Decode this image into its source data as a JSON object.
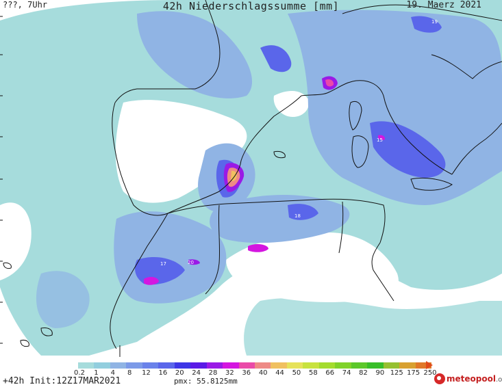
{
  "header": {
    "left": "???, 7Uhr",
    "title": "42h Niederschlagssumme [mm]",
    "date": "19. Maerz 2021"
  },
  "legend": {
    "ticks": [
      "0.2",
      "1",
      "4",
      "8",
      "12",
      "16",
      "20",
      "24",
      "28",
      "32",
      "36",
      "40",
      "44",
      "50",
      "58",
      "66",
      "74",
      "82",
      "90",
      "125",
      "175",
      "250"
    ],
    "colors": [
      "#a6dcdc",
      "#92cede",
      "#90b4e4",
      "#7c9ae8",
      "#6a82ea",
      "#5a66ea",
      "#3e36e6",
      "#5a1ae6",
      "#9a1ae6",
      "#d416e0",
      "#ea4aa8",
      "#ee8a86",
      "#f0c060",
      "#e6e25a",
      "#c8e23e",
      "#a4dc2e",
      "#80d22a",
      "#5cc82a",
      "#38be28",
      "#96c030",
      "#d8a030",
      "#e07828"
    ]
  },
  "footer": {
    "init": "+42h Init:12Z17MAR2021",
    "pmx": "pmx: 55.8125mm"
  },
  "logo": {
    "name": "meteopool",
    "tld": ".org"
  },
  "map": {
    "max_labels": [
      "19",
      "18",
      "15",
      "17",
      "20",
      "18"
    ]
  }
}
